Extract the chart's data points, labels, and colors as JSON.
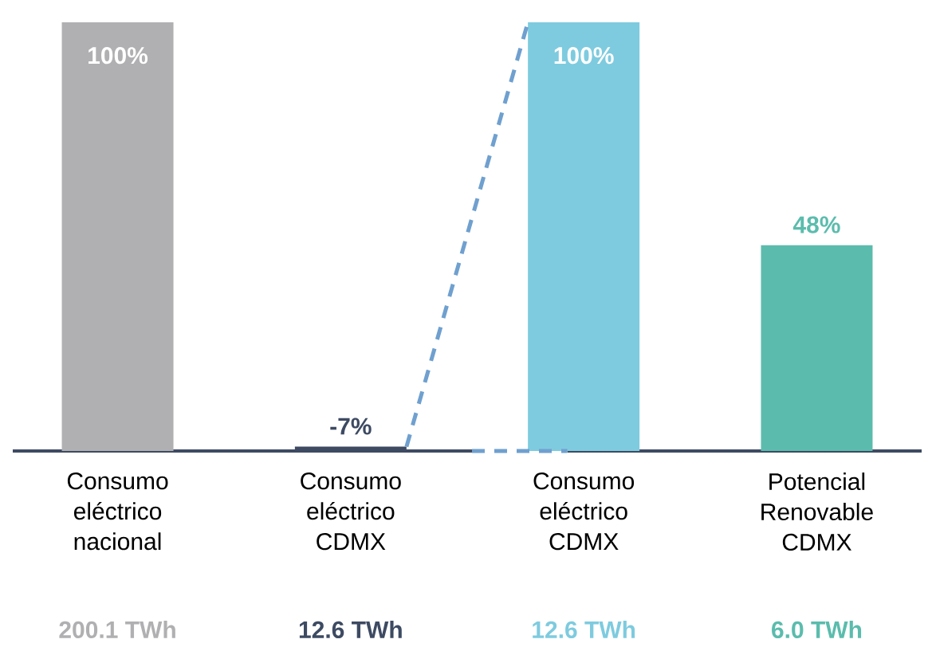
{
  "chart_data": {
    "type": "bar",
    "categories": [
      "Consumo eléctrico nacional",
      "Consumo eléctrico CDMX",
      "Consumo eléctrico CDMX",
      "Potencial Renovable CDMX"
    ],
    "values": [
      100,
      1,
      100,
      48
    ],
    "colors": [
      "#b0b0b2",
      "#3d4a62",
      "#7ecbdf",
      "#5bbcad"
    ],
    "value_labels": [
      "100%",
      null,
      "100%",
      "48%"
    ],
    "annotations": [
      "200.1 TWh",
      "12.6 TWh",
      "12.6 TWh",
      "6.0 TWh",
      {
        "text": "-7%",
        "x": "Consumo eléctrico CDMX",
        "y": 1
      }
    ]
  }
}
